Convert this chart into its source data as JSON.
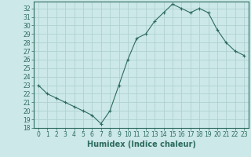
{
  "title": "",
  "xlabel": "Humidex (Indice chaleur)",
  "x": [
    0,
    1,
    2,
    3,
    4,
    5,
    6,
    7,
    8,
    9,
    10,
    11,
    12,
    13,
    14,
    15,
    16,
    17,
    18,
    19,
    20,
    21,
    22,
    23
  ],
  "y": [
    23,
    22,
    21.5,
    21,
    20.5,
    20,
    19.5,
    18.5,
    20,
    23,
    26,
    28.5,
    29,
    30.5,
    31.5,
    32.5,
    32,
    31.5,
    32,
    31.5,
    29.5,
    28,
    27,
    26.5
  ],
  "line_color": "#2d6b5e",
  "marker": "+",
  "marker_size": 3.5,
  "bg_color": "#cce8e8",
  "grid_color": "#aacece",
  "ylim": [
    18,
    32.8
  ],
  "ytick_min": 18,
  "ytick_max": 32,
  "xticks": [
    0,
    1,
    2,
    3,
    4,
    5,
    6,
    7,
    8,
    9,
    10,
    11,
    12,
    13,
    14,
    15,
    16,
    17,
    18,
    19,
    20,
    21,
    22,
    23
  ],
  "tick_fontsize": 5.5,
  "label_fontsize": 7,
  "tick_color": "#2d6b5e",
  "axis_color": "#2d6b5e",
  "lw": 0.8,
  "marker_lw": 0.8
}
